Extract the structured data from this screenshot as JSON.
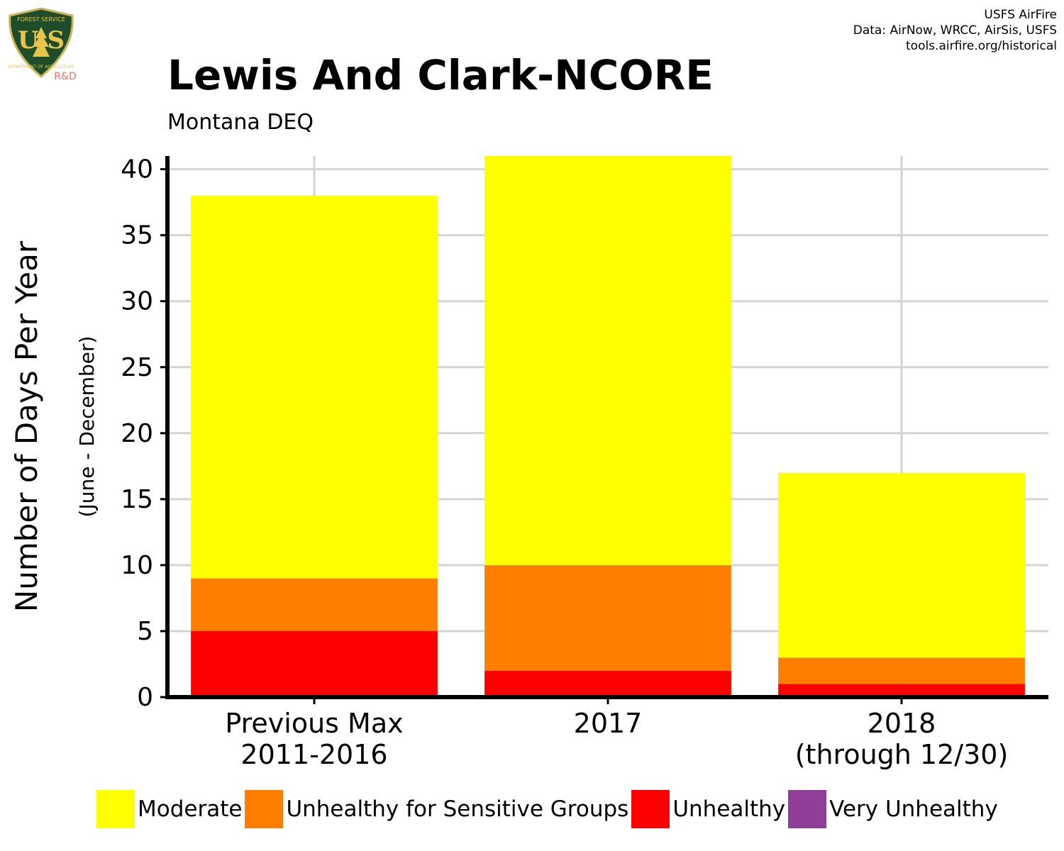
{
  "logo": {
    "top_text": "FOREST SERVICE",
    "letters": "U S",
    "bottom_text": "DEPARTMENT OF AGRICULTURE",
    "badge": "R&D"
  },
  "credits": [
    "USFS AirFire",
    "Data: AirNow, WRCC, AirSis, USFS",
    "tools.airfire.org/historical"
  ],
  "colors": {
    "Moderate": "#ffff00",
    "Unhealthy for Sensitive Groups": "#ff7e00",
    "Unhealthy": "#ff0000",
    "Very Unhealthy": "#8f3f97"
  },
  "chart_data": {
    "type": "bar",
    "stacked": true,
    "title": "Lewis And Clark-NCORE",
    "subtitle": "Montana DEQ",
    "ylabel": "Number of Days Per Year",
    "ylabel_sub": "(June - December)",
    "xlabel": "",
    "ylim": [
      0,
      41
    ],
    "yticks": [
      0,
      5,
      10,
      15,
      20,
      25,
      30,
      35,
      40
    ],
    "grid": true,
    "legend_position": "bottom",
    "categories": [
      [
        "Previous Max",
        "2011-2016"
      ],
      [
        "2017"
      ],
      [
        "2018",
        "(through 12/30)"
      ]
    ],
    "series": [
      {
        "name": "Unhealthy",
        "color": "#ff0000",
        "values": [
          5,
          2,
          1
        ]
      },
      {
        "name": "Unhealthy for Sensitive Groups",
        "color": "#ff7e00",
        "values": [
          4,
          8,
          2
        ]
      },
      {
        "name": "Moderate",
        "color": "#ffff00",
        "values": [
          29,
          31,
          14
        ]
      }
    ],
    "legend": [
      {
        "name": "Moderate",
        "color": "#ffff00"
      },
      {
        "name": "Unhealthy for Sensitive Groups",
        "color": "#ff7e00"
      },
      {
        "name": "Unhealthy",
        "color": "#ff0000"
      },
      {
        "name": "Very Unhealthy",
        "color": "#8f3f97"
      }
    ]
  }
}
